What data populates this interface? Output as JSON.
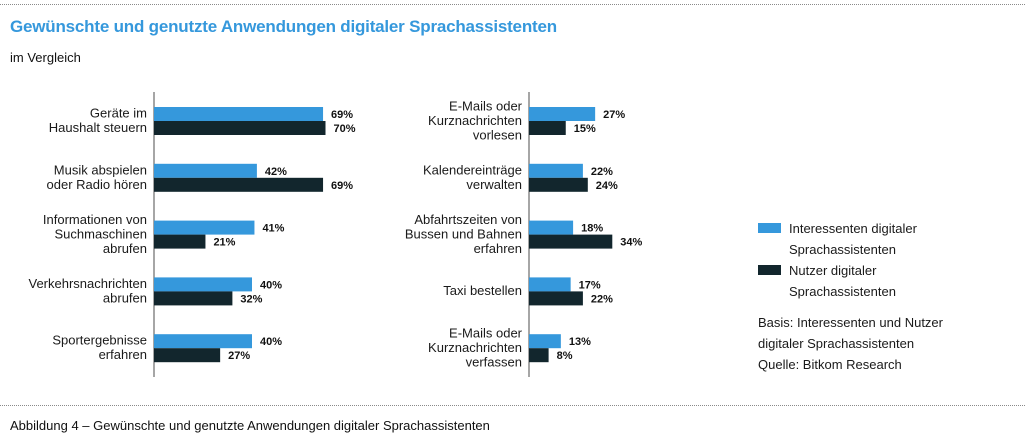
{
  "header": {
    "title": "Gewünschte und genutzte Anwendungen digitaler Sprachassistenten",
    "subtitle": "im Vergleich"
  },
  "legend": {
    "items": [
      {
        "line1": "Interessenten digitaler",
        "line2": "Sprachassistenten",
        "color": "#3598dc"
      },
      {
        "line1": "Nutzer digitaler",
        "line2": "Sprachassistenten",
        "color": "#12262d"
      }
    ],
    "basis_line1": "Basis: Interessenten und Nutzer",
    "basis_line2": "digitaler Sprachassistenten",
    "source": "Quelle: Bitkom Research"
  },
  "caption": "Abbildung 4 – Gewünschte und genutzte Anwendungen digitaler Sprachassistenten",
  "chart_data": [
    {
      "type": "bar",
      "orientation": "horizontal",
      "title": "Gewünschte und genutzte Anwendungen digitaler Sprachassistenten",
      "subtitle": "im Vergleich",
      "xlabel": "",
      "ylabel": "",
      "xlim": [
        0,
        100
      ],
      "unit": "%",
      "grid": false,
      "legend_position": "right",
      "categories": [
        [
          "Geräte im",
          "Haushalt steuern"
        ],
        [
          "Musik abspielen",
          "oder Radio hören"
        ],
        [
          "Informationen von",
          "Suchmaschinen",
          "abrufen"
        ],
        [
          "Verkehrsnachrichten",
          "abrufen"
        ],
        [
          "Sportergebnisse",
          "erfahren"
        ]
      ],
      "series": [
        {
          "name": "Interessenten digitaler Sprachassistenten",
          "color": "#3598dc",
          "values": [
            69,
            42,
            41,
            40,
            40
          ]
        },
        {
          "name": "Nutzer digitaler Sprachassistenten",
          "color": "#12262d",
          "values": [
            70,
            69,
            21,
            32,
            27
          ]
        }
      ]
    },
    {
      "type": "bar",
      "orientation": "horizontal",
      "xlabel": "",
      "ylabel": "",
      "xlim": [
        0,
        100
      ],
      "unit": "%",
      "grid": false,
      "categories": [
        [
          "E-Mails oder",
          "Kurznachrichten",
          "vorlesen"
        ],
        [
          "Kalendereinträge",
          "verwalten"
        ],
        [
          "Abfahrtszeiten von",
          "Bussen und Bahnen",
          "erfahren"
        ],
        [
          "Taxi bestellen"
        ],
        [
          "E-Mails oder",
          "Kurznachrichten",
          "verfassen"
        ]
      ],
      "series": [
        {
          "name": "Interessenten digitaler Sprachassistenten",
          "color": "#3598dc",
          "values": [
            27,
            22,
            18,
            17,
            13
          ]
        },
        {
          "name": "Nutzer digitaler Sprachassistenten",
          "color": "#12262d",
          "values": [
            15,
            24,
            34,
            22,
            8
          ]
        }
      ]
    }
  ]
}
